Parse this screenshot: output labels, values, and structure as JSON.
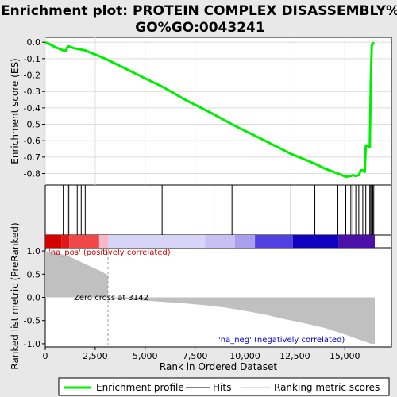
{
  "chart_data": {
    "type": "line",
    "title_line1": "Enrichment plot: PROTEIN COMPLEX DISASSEMBLY%",
    "title_line2": "GO%GO:0043241",
    "es_ylabel": "Enrichment score (ES)",
    "metric_ylabel": "Ranked list metric (PreRanked)",
    "xlabel": "Rank in Ordered Dataset",
    "xlim": [
      0,
      16500
    ],
    "x_ticks": [
      0,
      2500,
      5000,
      7500,
      10000,
      12500,
      15000
    ],
    "x_tick_labels": [
      "0",
      "2,500",
      "5,000",
      "7,500",
      "10,000",
      "12,500",
      "15,000"
    ],
    "es_ylim": [
      -0.87,
      0.03
    ],
    "es_ticks": [
      0.0,
      -0.1,
      -0.2,
      -0.3,
      -0.4,
      -0.5,
      -0.6,
      -0.7,
      -0.8
    ],
    "es_tick_labels": [
      "0.0",
      "-0.1",
      "-0.2",
      "-0.3",
      "-0.4",
      "-0.5",
      "-0.6",
      "-0.7",
      "-0.8"
    ],
    "metric_ylim": [
      -1.07,
      1.07
    ],
    "metric_ticks": [
      1.0,
      0.5,
      0.0,
      -0.5,
      -1.0
    ],
    "metric_tick_labels": [
      "1.0",
      "0.5",
      "0.0",
      "-0.5",
      "-1.0"
    ],
    "hits": [
      900,
      1100,
      1180,
      1600,
      1800,
      2000,
      5850,
      8450,
      9350,
      12300,
      13500,
      14650,
      15050,
      15300,
      15400,
      15550,
      15700,
      15900,
      16050,
      16250,
      16300,
      16350,
      16400,
      16450
    ],
    "es_curve": {
      "x": [
        0,
        200,
        500,
        900,
        1050,
        1100,
        1180,
        1400,
        1600,
        1800,
        2000,
        2200,
        3000,
        4000,
        5000,
        5850,
        7000,
        8450,
        9350,
        10000,
        11000,
        12300,
        13500,
        14000,
        14650,
        15050,
        15300,
        15400,
        15550,
        15700,
        15800,
        15900,
        16000,
        16050,
        16100,
        16250,
        16300,
        16350,
        16400,
        16450
      ],
      "y": [
        0.0,
        -0.01,
        -0.03,
        -0.05,
        -0.05,
        -0.03,
        -0.025,
        -0.035,
        -0.04,
        -0.045,
        -0.05,
        -0.06,
        -0.1,
        -0.16,
        -0.22,
        -0.27,
        -0.35,
        -0.44,
        -0.5,
        -0.54,
        -0.6,
        -0.68,
        -0.74,
        -0.77,
        -0.8,
        -0.82,
        -0.815,
        -0.81,
        -0.815,
        -0.81,
        -0.78,
        -0.78,
        -0.79,
        -0.63,
        -0.63,
        -0.64,
        -0.24,
        -0.02,
        -0.01,
        0.0
      ]
    },
    "metric_curve": {
      "x": [
        0,
        300,
        800,
        1200,
        1600,
        2000,
        2400,
        2800,
        3142,
        3142,
        4000,
        5000,
        6000,
        7000,
        8000,
        9000,
        10000,
        11000,
        12000,
        13000,
        14000,
        15000,
        15500,
        16000,
        16300,
        16500
      ],
      "y": [
        1.0,
        0.97,
        0.93,
        0.88,
        0.8,
        0.72,
        0.64,
        0.56,
        0.48,
        0.0,
        -0.04,
        -0.07,
        -0.1,
        -0.13,
        -0.17,
        -0.22,
        -0.29,
        -0.37,
        -0.47,
        -0.56,
        -0.66,
        -0.8,
        -0.88,
        -0.95,
        -1.0,
        -1.0
      ]
    },
    "zero_cross_rank": 3142,
    "zero_cross_label": "Zero cross at 3142",
    "pos_label": "'na_pos' (positively correlated)",
    "neg_label": "'na_neg' (negatively correlated)",
    "colors": {
      "es_line": "#00ee00",
      "hit": "#000000",
      "metric_fill": "#c0c0c0",
      "pos_text": "#cc0000",
      "neg_text": "#0000cc",
      "heat": [
        "#d40000",
        "#f04848",
        "#f8a0b0",
        "#d8d0f4",
        "#a8a0ec",
        "#5040e0",
        "#1000c0",
        "#4a10a8"
      ]
    },
    "legend": [
      "Enrichment profile",
      "Hits",
      "Ranking metric scores"
    ]
  }
}
